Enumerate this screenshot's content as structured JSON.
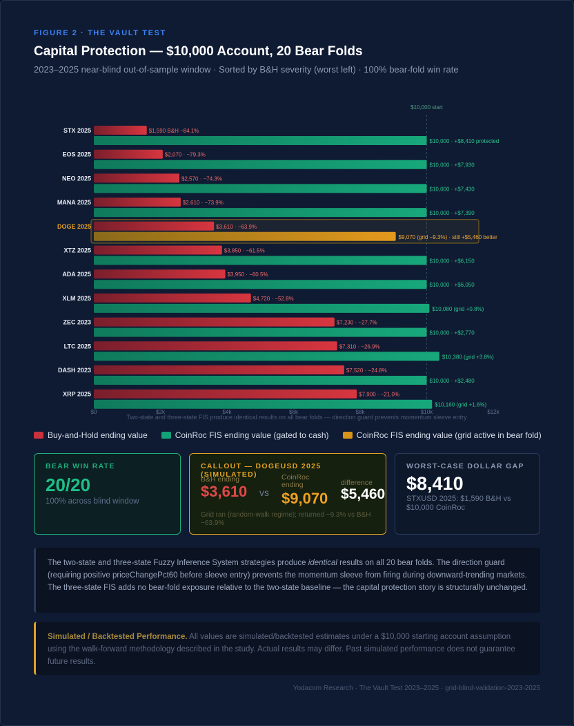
{
  "header": {
    "figure_label": "FIGURE 2  ·  THE VAULT TEST",
    "title": "Capital Protection — $10,000 Account, 20 Bear Folds",
    "subtitle": "2023–2025 near-blind out-of-sample window  ·  Sorted by B&H severity (worst left)  ·  100% bear-fold win rate"
  },
  "chart_data": {
    "type": "bar",
    "orientation": "horizontal",
    "reference_line": {
      "value": 10000,
      "label": "$10,000 start"
    },
    "x_ticks": [
      "$0",
      "$2k",
      "$4k",
      "$6k",
      "$8k",
      "$10k",
      "$12k"
    ],
    "xlim": [
      0,
      12000
    ],
    "axis_note": "Two-state and three-state FIS produce identical results on all bear folds — direction guard prevents momentum sleeve entry",
    "highlight_category": "DOGE 2025",
    "categories": [
      "STX 2025",
      "EOS 2025",
      "NEO 2025",
      "MANA 2025",
      "DOGE 2025",
      "XTZ 2025",
      "ADA 2025",
      "XLM 2025",
      "ZEC 2023",
      "LTC 2025",
      "DASH 2023",
      "XRP 2025"
    ],
    "series": [
      {
        "name": "Buy-and-Hold ending value",
        "color": "#c8323c",
        "values": [
          1590,
          2070,
          2570,
          2610,
          3610,
          3850,
          3950,
          4720,
          7230,
          7310,
          7520,
          7900
        ],
        "labels": [
          "$1,590 B&H −84.1%",
          "$2,070 · −79.3%",
          "$2,570 · −74.3%",
          "$2,610 · −73.9%",
          "$3,610 · −63.9%",
          "$3,850 · −61.5%",
          "$3,950 · −60.5%",
          "$4,720 · −52.8%",
          "$7,230 · −27.7%",
          "$7,310 · −26.9%",
          "$7,520 · −24.8%",
          "$7,900 · −21.0%"
        ]
      },
      {
        "name": "CoinRoc FIS ending value (gated to cash)",
        "color": "#13a277",
        "values": [
          10000,
          10000,
          10000,
          10000,
          9070,
          10000,
          10000,
          10080,
          10000,
          10380,
          10000,
          10160
        ],
        "labels": [
          "$10,000 · +$8,410 protected",
          "$10,000 · +$7,930",
          "$10,000 · +$7,430",
          "$10,000 · +$7,390",
          "$9,070 (grid −9.3%) · still +$5,460 better",
          "$10,000 · +$6,150",
          "$10,000 · +$6,050",
          "$10,080 (grid +0.8%)",
          "$10,000 · +$2,770",
          "$10,380 (grid +3.8%)",
          "$10,000 · +$2,480",
          "$10,160 (grid +1.6%)"
        ]
      }
    ],
    "grid_active_series": {
      "name": "CoinRoc FIS ending value (grid active in bear fold)",
      "color": "#d9921a",
      "category": "DOGE 2025"
    }
  },
  "legend": [
    {
      "label": "Buy-and-Hold ending value",
      "color": "#c8323c"
    },
    {
      "label": "CoinRoc FIS ending value (gated to cash)",
      "color": "#13a277"
    },
    {
      "label": "CoinRoc FIS ending value (grid active in bear fold)",
      "color": "#d9921a"
    }
  ],
  "cards": {
    "win_rate": {
      "title": "BEAR WIN RATE",
      "value": "20/20",
      "caption": "100% across blind window"
    },
    "callout": {
      "title": "CALLOUT — DOGEUSD 2025 (SIMULATED)",
      "bh_label": "B&H ending",
      "bh_value": "$3,610",
      "vs": "vs",
      "coinroc_label": "CoinRoc ending",
      "coinroc_value": "$9,070",
      "diff_label": "difference",
      "diff_value": "$5,460",
      "note": "Grid ran (random-walk regime); returned −9.3% vs B&H −63.9%"
    },
    "worst_case": {
      "title": "WORST-CASE DOLLAR GAP",
      "value": "$8,410",
      "caption": "STXUSD 2025: $1,590 B&H vs $10,000 CoinRoc"
    }
  },
  "notes": {
    "identical_pre": "The two-state and three-state Fuzzy Inference System strategies produce ",
    "identical_em": "identical",
    "identical_post": " results on all 20 bear folds. The direction guard (requiring positive priceChangePct60 before sleeve entry) prevents the momentum sleeve from firing during downward-trending markets. The three-state FIS adds no bear-fold exposure relative to the two-state baseline — the capital protection story is structurally unchanged.",
    "disclaimer_bold": "Simulated / Backtested Performance.",
    "disclaimer_text": " All values are simulated/backtested estimates under a $10,000 starting account assumption using the walk-forward methodology described in the study. Actual results may differ. Past simulated performance does not guarantee future results."
  },
  "footer": "Yodacom Research · The Vault Test 2023–2025 · grid-blind-validation-2023-2025"
}
